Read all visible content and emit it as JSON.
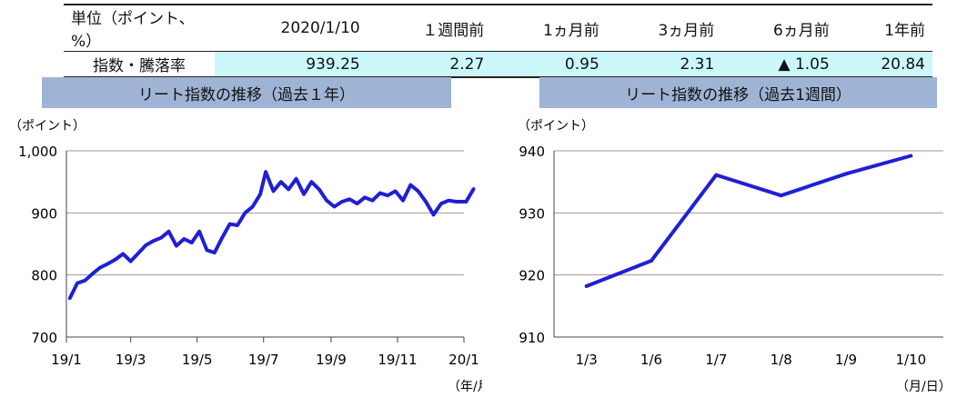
{
  "table": {
    "headers": [
      "単位（ポイント、%）",
      "2020/1/10",
      "１週間前",
      "1ヵ月前",
      "3ヵ月前",
      "6ヵ月前",
      "1年前"
    ],
    "row_label": "指数・騰落率",
    "values": [
      "939.25",
      "2.27",
      "0.95",
      "2.31",
      "▲ 1.05",
      "20.84"
    ]
  },
  "chart_data": [
    {
      "type": "line",
      "title": "リート指数の推移（過去１年）",
      "ylabel": "（ポイント）",
      "xlabel": "（年/月）",
      "ylim": [
        700,
        1000
      ],
      "yticks": [
        700,
        800,
        900,
        1000
      ],
      "ytick_labels": [
        "700",
        "800",
        "900",
        "1,000"
      ],
      "xticks": [
        "19/1",
        "19/3",
        "19/5",
        "19/7",
        "19/9",
        "19/11",
        "20/1"
      ],
      "grid": true,
      "color": "#1f1fd6",
      "series": [
        {
          "values": [
            {
              "x": "2019-01-04",
              "y": 762
            },
            {
              "x": "2019-01-11",
              "y": 787
            },
            {
              "x": "2019-01-18",
              "y": 791
            },
            {
              "x": "2019-01-25",
              "y": 802
            },
            {
              "x": "2019-02-01",
              "y": 812
            },
            {
              "x": "2019-02-08",
              "y": 818
            },
            {
              "x": "2019-02-15",
              "y": 825
            },
            {
              "x": "2019-02-22",
              "y": 834
            },
            {
              "x": "2019-03-01",
              "y": 822
            },
            {
              "x": "2019-03-08",
              "y": 835
            },
            {
              "x": "2019-03-15",
              "y": 848
            },
            {
              "x": "2019-03-22",
              "y": 855
            },
            {
              "x": "2019-03-29",
              "y": 860
            },
            {
              "x": "2019-04-05",
              "y": 870
            },
            {
              "x": "2019-04-12",
              "y": 847
            },
            {
              "x": "2019-04-19",
              "y": 858
            },
            {
              "x": "2019-04-26",
              "y": 852
            },
            {
              "x": "2019-05-03",
              "y": 870
            },
            {
              "x": "2019-05-10",
              "y": 840
            },
            {
              "x": "2019-05-17",
              "y": 836
            },
            {
              "x": "2019-05-24",
              "y": 860
            },
            {
              "x": "2019-05-31",
              "y": 882
            },
            {
              "x": "2019-06-07",
              "y": 880
            },
            {
              "x": "2019-06-14",
              "y": 900
            },
            {
              "x": "2019-06-21",
              "y": 910
            },
            {
              "x": "2019-06-28",
              "y": 930
            },
            {
              "x": "2019-07-03",
              "y": 966
            },
            {
              "x": "2019-07-10",
              "y": 935
            },
            {
              "x": "2019-07-17",
              "y": 950
            },
            {
              "x": "2019-07-24",
              "y": 938
            },
            {
              "x": "2019-07-31",
              "y": 955
            },
            {
              "x": "2019-08-07",
              "y": 930
            },
            {
              "x": "2019-08-14",
              "y": 950
            },
            {
              "x": "2019-08-21",
              "y": 938
            },
            {
              "x": "2019-08-28",
              "y": 920
            },
            {
              "x": "2019-09-04",
              "y": 910
            },
            {
              "x": "2019-09-11",
              "y": 918
            },
            {
              "x": "2019-09-18",
              "y": 922
            },
            {
              "x": "2019-09-25",
              "y": 915
            },
            {
              "x": "2019-10-02",
              "y": 925
            },
            {
              "x": "2019-10-09",
              "y": 920
            },
            {
              "x": "2019-10-16",
              "y": 932
            },
            {
              "x": "2019-10-23",
              "y": 928
            },
            {
              "x": "2019-10-30",
              "y": 935
            },
            {
              "x": "2019-11-06",
              "y": 920
            },
            {
              "x": "2019-11-13",
              "y": 945
            },
            {
              "x": "2019-11-20",
              "y": 935
            },
            {
              "x": "2019-11-27",
              "y": 918
            },
            {
              "x": "2019-12-04",
              "y": 897
            },
            {
              "x": "2019-12-11",
              "y": 915
            },
            {
              "x": "2019-12-18",
              "y": 920
            },
            {
              "x": "2019-12-25",
              "y": 918
            },
            {
              "x": "2020-01-03",
              "y": 918
            },
            {
              "x": "2020-01-10",
              "y": 939
            }
          ]
        }
      ]
    },
    {
      "type": "line",
      "title": "リート指数の推移（過去1週間）",
      "ylabel": "（ポイント）",
      "xlabel": "（月/日）",
      "ylim": [
        910,
        940
      ],
      "yticks": [
        910,
        920,
        930,
        940
      ],
      "categories": [
        "1/3",
        "1/6",
        "1/7",
        "1/8",
        "1/9",
        "1/10"
      ],
      "grid": true,
      "color": "#1f1fd6",
      "series": [
        {
          "values": [
            918.2,
            922.3,
            936.1,
            932.8,
            936.3,
            939.2
          ]
        }
      ]
    }
  ]
}
